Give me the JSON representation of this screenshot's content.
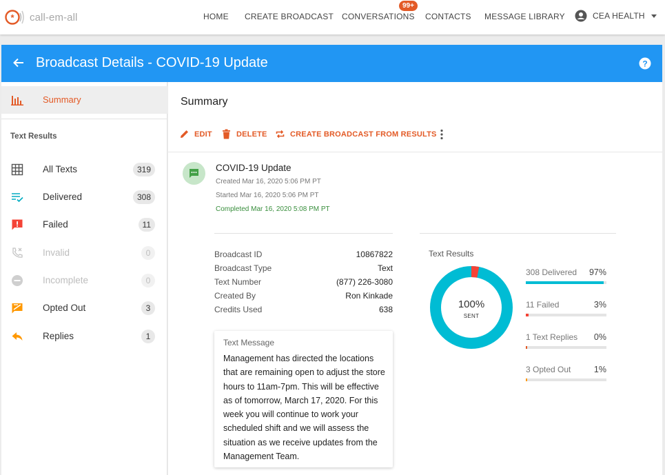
{
  "app": {
    "logo_text": "call-em-all"
  },
  "nav": {
    "links": [
      "HOME",
      "CREATE BROADCAST",
      "CONVERSATIONS",
      "CONTACTS",
      "MESSAGE LIBRARY"
    ],
    "conversations_badge": "99+",
    "account_label": "CEA HEALTH"
  },
  "header": {
    "title": "Broadcast Details - COVID-19 Update"
  },
  "sidebar": {
    "summary_label": "Summary",
    "section_title": "Text Results",
    "items": [
      {
        "label": "All Texts",
        "count": "319",
        "icon": "grid-icon",
        "disabled": false
      },
      {
        "label": "Delivered",
        "count": "308",
        "icon": "delivered-check-icon",
        "disabled": false
      },
      {
        "label": "Failed",
        "count": "11",
        "icon": "alert-message-icon",
        "disabled": false
      },
      {
        "label": "Invalid",
        "count": "0",
        "icon": "phone-missed-icon",
        "disabled": true
      },
      {
        "label": "Incomplete",
        "count": "0",
        "icon": "minus-circle-icon",
        "disabled": true
      },
      {
        "label": "Opted Out",
        "count": "3",
        "icon": "opted-out-icon",
        "disabled": false
      },
      {
        "label": "Replies",
        "count": "1",
        "icon": "reply-icon",
        "disabled": false
      }
    ]
  },
  "main": {
    "title": "Summary",
    "actions": {
      "edit": "EDIT",
      "delete": "DELETE",
      "create_from_results": "CREATE BROADCAST FROM RESULTS"
    },
    "broadcast": {
      "name": "COVID-19 Update",
      "created": "Created Mar 16, 2020 5:06 PM PT",
      "started": "Started Mar 16, 2020 5:06 PM PT",
      "completed": "Completed Mar 16, 2020 5:08 PM PT"
    },
    "details": [
      {
        "key": "Broadcast ID",
        "value": "10867822"
      },
      {
        "key": "Broadcast Type",
        "value": "Text"
      },
      {
        "key": "Text Number",
        "value": "(877) 226-3080"
      },
      {
        "key": "Created By",
        "value": "Ron Kinkade"
      },
      {
        "key": "Credits Used",
        "value": "638"
      }
    ],
    "message": {
      "label": "Text Message",
      "body": "Management has directed the locations that are remaining open to adjust the store hours to 11am-7pm. This will be effective as of tomorrow, March 17, 2020. For this week you will continue to work your scheduled shift and we will assess the situation as we receive updates from the Management Team."
    },
    "results": {
      "title": "Text Results",
      "sent_percent": "100%",
      "sent_label": "SENT",
      "delivered_fraction": 0.97,
      "failed_fraction": 0.03,
      "stats": [
        {
          "label": "308 Delivered",
          "percent": "97%",
          "fraction": 0.97,
          "color": "#00bcd4"
        },
        {
          "label": "11 Failed",
          "percent": "3%",
          "fraction": 0.03,
          "color": "#f44336"
        },
        {
          "label": "1 Text Replies",
          "percent": "0%",
          "fraction": 0.0,
          "color": "#e35a26"
        },
        {
          "label": "3 Opted Out",
          "percent": "1%",
          "fraction": 0.01,
          "color": "#ff9800"
        }
      ]
    }
  },
  "colors": {
    "accent": "#e35a26",
    "header": "#2196f3",
    "delivered": "#00bcd4",
    "failed": "#f44336",
    "completed": "#388e3c"
  }
}
